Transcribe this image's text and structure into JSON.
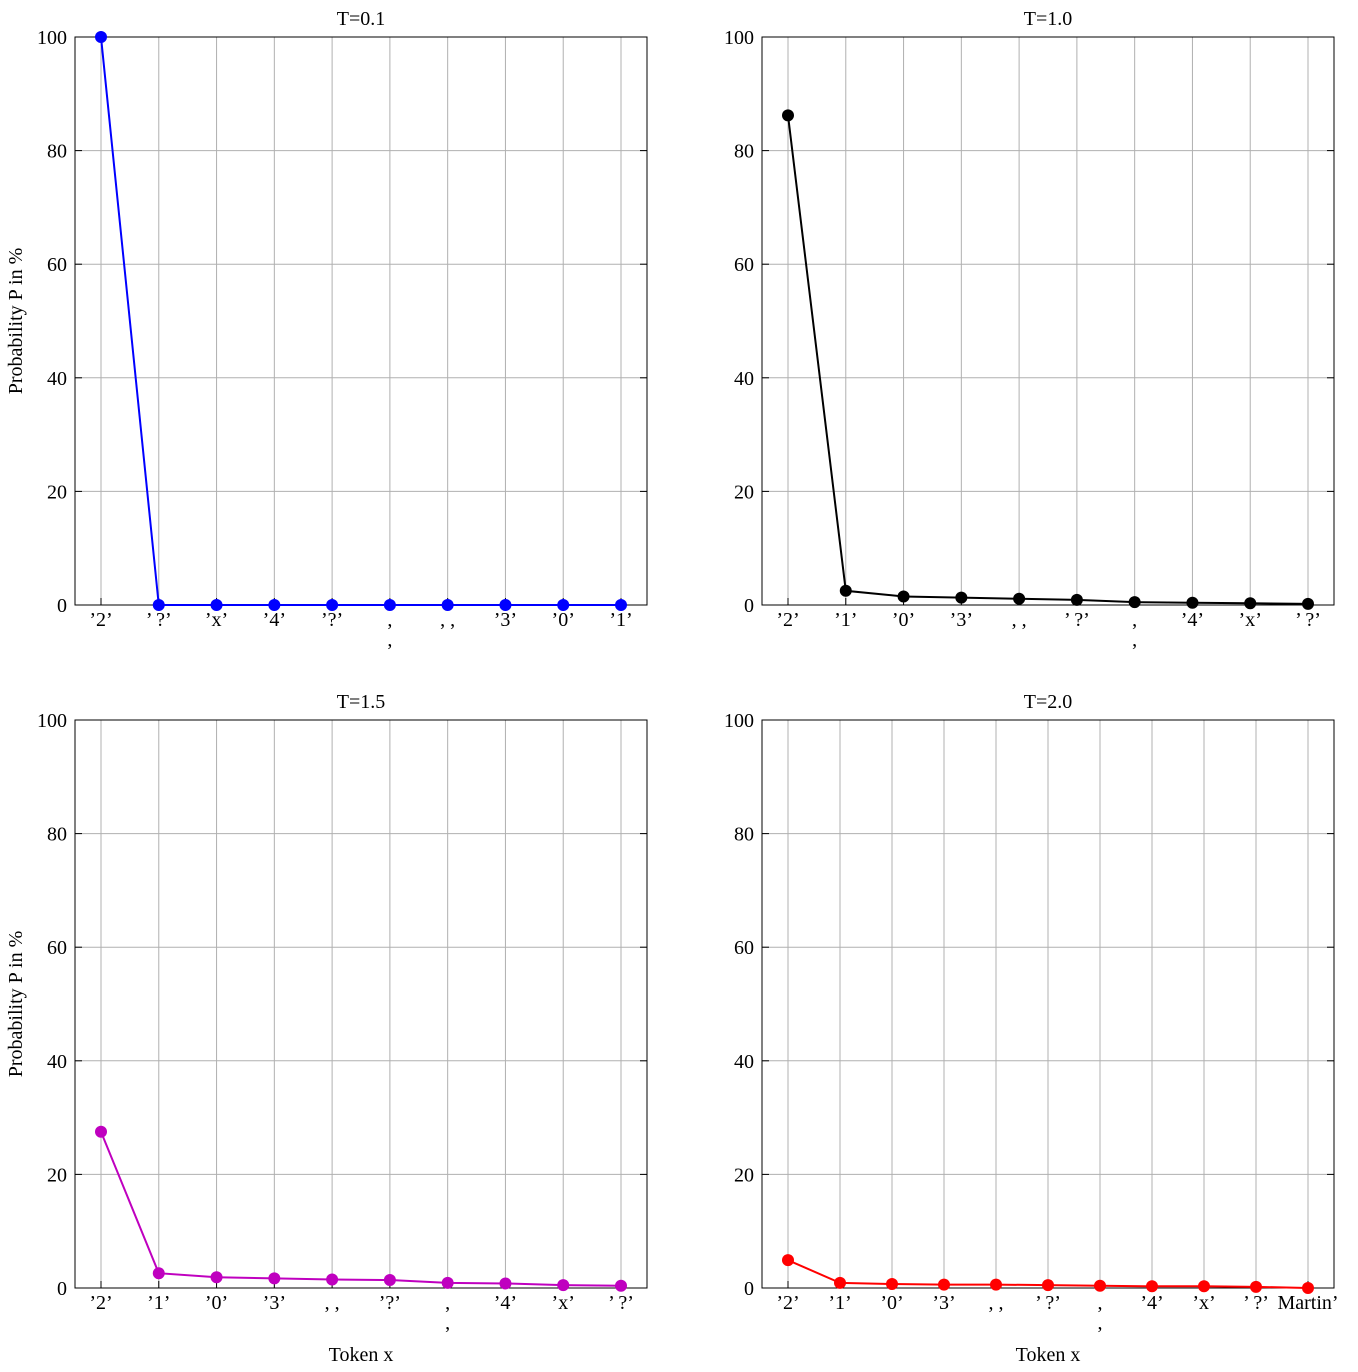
{
  "chart_data": [
    {
      "type": "line",
      "title": "T=0.1",
      "ylabel": "Probability P in %",
      "color": "#0000ff",
      "categories": [
        "’2’",
        "’ ?’",
        "’x’",
        "’4’",
        "’?’",
        ",\n,",
        ", ,",
        "’3’",
        "’0’",
        "’1’"
      ],
      "values": [
        100,
        0,
        0,
        0,
        0,
        0,
        0,
        0,
        0,
        0
      ],
      "ylim": [
        0,
        100
      ],
      "yticks": [
        0,
        20,
        40,
        60,
        80,
        100
      ],
      "grid": true
    },
    {
      "type": "line",
      "title": "T=1.0",
      "color": "#000000",
      "categories": [
        "’2’",
        "’1’",
        "’0’",
        "’3’",
        ", ,",
        "’ ?’",
        ",\n,",
        "’4’",
        "’x’",
        "’ ?’"
      ],
      "values": [
        86.2,
        2.5,
        1.5,
        1.3,
        1.1,
        0.9,
        0.5,
        0.4,
        0.3,
        0.2
      ],
      "ylim": [
        0,
        100
      ],
      "yticks": [
        0,
        20,
        40,
        60,
        80,
        100
      ],
      "grid": true
    },
    {
      "type": "line",
      "title": "T=1.5",
      "ylabel": "Probability P in %",
      "xlabel": "Token x",
      "color": "#bf00bf",
      "categories": [
        "’2’",
        "’1’",
        "’0’",
        "’3’",
        ", ,",
        "’?’",
        ",\n,",
        "’4’",
        "’x’",
        "’ ?’"
      ],
      "values": [
        27.5,
        2.6,
        1.9,
        1.7,
        1.5,
        1.4,
        0.9,
        0.8,
        0.5,
        0.4
      ],
      "ylim": [
        0,
        100
      ],
      "yticks": [
        0,
        20,
        40,
        60,
        80,
        100
      ],
      "grid": true
    },
    {
      "type": "line",
      "title": "T=2.0",
      "xlabel": "Token x",
      "color": "#ff0000",
      "categories": [
        "’2’",
        "’1’",
        "’0’",
        "’3’",
        ", ,",
        "’ ?’",
        ",\n,",
        "’4’",
        "’x’",
        "’ ?’",
        "Martin’"
      ],
      "values": [
        4.9,
        0.9,
        0.7,
        0.6,
        0.6,
        0.5,
        0.4,
        0.3,
        0.3,
        0.2,
        0.0
      ],
      "ylim": [
        0,
        100
      ],
      "yticks": [
        0,
        20,
        40,
        60,
        80,
        100
      ],
      "grid": true
    }
  ]
}
